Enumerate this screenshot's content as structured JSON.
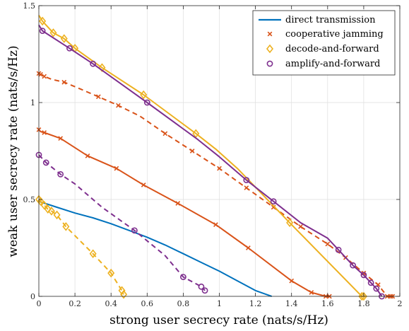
{
  "chart_data": {
    "type": "line",
    "xlabel": "strong user secrecy rate (nats/s/Hz)",
    "ylabel": "weak user secrecy rate (nats/s/Hz)",
    "xlim": [
      0,
      2
    ],
    "ylim": [
      0,
      1.5
    ],
    "xticks": [
      "0",
      "0.2",
      "0.4",
      "0.6",
      "0.8",
      "1",
      "1.2",
      "1.4",
      "1.6",
      "1.8",
      "2"
    ],
    "yticks": [
      "0",
      "0.5",
      "1",
      "1.5"
    ],
    "grid": true,
    "legend_position": "top-right",
    "colors": {
      "direct": "#0072BD",
      "jamming": "#D95319",
      "df": "#EDB120",
      "af": "#7E2F8E"
    },
    "legend": [
      {
        "label": "direct transmission",
        "marker": "none",
        "color_key": "direct"
      },
      {
        "label": "cooperative jamming",
        "marker": "x",
        "color_key": "jamming"
      },
      {
        "label": "decode-and-forward",
        "marker": "diamond",
        "color_key": "df"
      },
      {
        "label": "amplify-and-forward",
        "marker": "circle",
        "color_key": "af"
      }
    ],
    "series": [
      {
        "color_key": "direct",
        "dash": false,
        "marker": "none",
        "points": [
          [
            0,
            0.49
          ],
          [
            0.1,
            0.46
          ],
          [
            0.2,
            0.43
          ],
          [
            0.3,
            0.405
          ],
          [
            0.4,
            0.375
          ],
          [
            0.5,
            0.34
          ],
          [
            0.6,
            0.305
          ],
          [
            0.7,
            0.265
          ],
          [
            0.8,
            0.22
          ],
          [
            0.9,
            0.175
          ],
          [
            1.0,
            0.13
          ],
          [
            1.1,
            0.08
          ],
          [
            1.2,
            0.03
          ],
          [
            1.29,
            0
          ]
        ]
      },
      {
        "color_key": "jamming",
        "dash": true,
        "marker": "x",
        "points": [
          [
            0,
            1.15
          ],
          [
            0.01,
            1.145
          ],
          [
            0.03,
            1.135
          ],
          [
            0.07,
            1.12
          ],
          [
            0.14,
            1.105
          ],
          [
            0.23,
            1.07
          ],
          [
            0.33,
            1.03
          ],
          [
            0.44,
            0.985
          ],
          [
            0.56,
            0.93
          ],
          [
            0.7,
            0.84
          ],
          [
            0.85,
            0.75
          ],
          [
            1.0,
            0.66
          ],
          [
            1.15,
            0.56
          ],
          [
            1.3,
            0.46
          ],
          [
            1.45,
            0.36
          ],
          [
            1.6,
            0.27
          ],
          [
            1.7,
            0.2
          ],
          [
            1.8,
            0.12
          ],
          [
            1.88,
            0.06
          ],
          [
            1.93,
            0
          ],
          [
            1.95,
            0
          ],
          [
            1.96,
            0
          ]
        ]
      },
      {
        "color_key": "jamming",
        "dash": false,
        "marker": "x",
        "points": [
          [
            0,
            0.86
          ],
          [
            0.01,
            0.85
          ],
          [
            0.03,
            0.845
          ],
          [
            0.12,
            0.815
          ],
          [
            0.27,
            0.725
          ],
          [
            0.43,
            0.66
          ],
          [
            0.58,
            0.575
          ],
          [
            0.77,
            0.48
          ],
          [
            0.98,
            0.37
          ],
          [
            1.16,
            0.25
          ],
          [
            1.4,
            0.08
          ],
          [
            1.51,
            0.02
          ],
          [
            1.59,
            0
          ],
          [
            1.61,
            0
          ]
        ]
      },
      {
        "color_key": "df",
        "dash": false,
        "marker": "diamond",
        "points": [
          [
            0,
            1.45
          ],
          [
            0.02,
            1.42
          ],
          [
            0.08,
            1.36
          ],
          [
            0.14,
            1.33
          ],
          [
            0.2,
            1.28
          ],
          [
            0.35,
            1.18
          ],
          [
            0.58,
            1.04
          ],
          [
            0.87,
            0.84
          ],
          [
            0.98,
            0.76
          ],
          [
            1.1,
            0.66
          ],
          [
            1.39,
            0.38
          ],
          [
            1.79,
            0
          ],
          [
            1.8,
            0
          ]
        ]
      },
      {
        "color_key": "af",
        "dash": false,
        "marker": "circle",
        "points": [
          [
            0,
            1.4
          ],
          [
            0.02,
            1.37
          ],
          [
            0.17,
            1.28
          ],
          [
            0.3,
            1.2
          ],
          [
            0.6,
            1.0
          ],
          [
            0.88,
            0.81
          ],
          [
            1.0,
            0.72
          ],
          [
            1.15,
            0.6
          ],
          [
            1.3,
            0.49
          ],
          [
            1.45,
            0.38
          ],
          [
            1.6,
            0.3
          ],
          [
            1.66,
            0.24
          ],
          [
            1.74,
            0.16
          ],
          [
            1.8,
            0.11
          ],
          [
            1.84,
            0.07
          ],
          [
            1.87,
            0.04
          ],
          [
            1.9,
            0
          ]
        ]
      },
      {
        "color_key": "df",
        "dash": true,
        "marker": "diamond",
        "points": [
          [
            0,
            0.5
          ],
          [
            0.01,
            0.49
          ],
          [
            0.03,
            0.47
          ],
          [
            0.05,
            0.45
          ],
          [
            0.07,
            0.44
          ],
          [
            0.1,
            0.42
          ],
          [
            0.15,
            0.36
          ],
          [
            0.3,
            0.22
          ],
          [
            0.4,
            0.12
          ],
          [
            0.46,
            0.03
          ],
          [
            0.47,
            0.01
          ]
        ]
      },
      {
        "color_key": "af",
        "dash": true,
        "marker": "circle",
        "points": [
          [
            0,
            0.73
          ],
          [
            0.04,
            0.69
          ],
          [
            0.12,
            0.63
          ],
          [
            0.2,
            0.58
          ],
          [
            0.35,
            0.46
          ],
          [
            0.53,
            0.34
          ],
          [
            0.7,
            0.21
          ],
          [
            0.8,
            0.1
          ],
          [
            0.9,
            0.05
          ],
          [
            0.92,
            0.03
          ]
        ]
      }
    ],
    "marker_indices": [
      [],
      [
        0,
        1,
        2,
        4,
        6,
        7,
        9,
        10,
        11,
        12,
        13,
        14,
        15,
        16,
        17,
        18,
        19,
        20,
        21
      ],
      [
        0,
        2,
        3,
        4,
        5,
        6,
        7,
        8,
        9,
        10,
        11,
        12,
        13
      ],
      [
        1,
        2,
        3,
        4,
        5,
        6,
        7,
        10,
        11,
        12
      ],
      [
        1,
        2,
        3,
        4,
        7,
        8,
        11,
        12,
        13,
        14,
        15,
        16
      ],
      [
        0,
        1,
        2,
        3,
        4,
        5,
        6,
        7,
        8,
        9,
        10
      ],
      [
        0,
        1,
        2,
        5,
        7,
        8,
        9
      ]
    ]
  }
}
